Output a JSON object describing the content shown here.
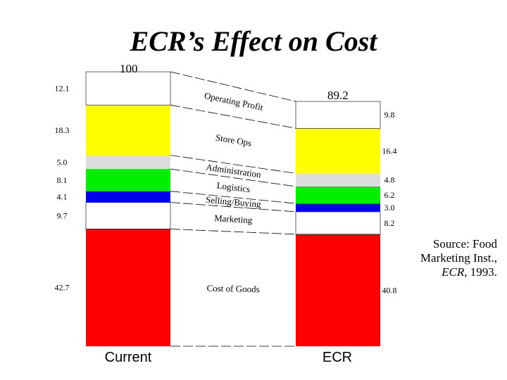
{
  "chart_data": {
    "type": "bar",
    "title": "ECR’s Effect on Cost",
    "categories": [
      "Current",
      "ECR"
    ],
    "totals": [
      "100",
      "89.2"
    ],
    "series": [
      {
        "name": "Cost of Goods",
        "color": "#ff0000",
        "values": [
          42.7,
          40.8
        ],
        "labels": [
          "42.7",
          "40.8"
        ]
      },
      {
        "name": "Marketing",
        "color": "#ffffff",
        "values": [
          9.7,
          8.2
        ],
        "labels": [
          "9.7",
          "8.2"
        ]
      },
      {
        "name": "Selling/Buying",
        "color": "#0000ee",
        "values": [
          4.1,
          3.0
        ],
        "labels": [
          "4.1",
          "3.0"
        ]
      },
      {
        "name": "Logistics",
        "color": "#00ee00",
        "values": [
          8.1,
          6.2
        ],
        "labels": [
          "8.1",
          "6.2"
        ]
      },
      {
        "name": "Administration",
        "color": "#dddddd",
        "values": [
          5.0,
          4.8
        ],
        "labels": [
          "5.0",
          "4.8"
        ]
      },
      {
        "name": "Store Ops",
        "color": "#ffff00",
        "values": [
          18.3,
          16.4
        ],
        "labels": [
          "18.3",
          "16.4"
        ]
      },
      {
        "name": "Operating Profit",
        "color": "#ffffff",
        "values": [
          12.1,
          9.8
        ],
        "labels": [
          "12.1",
          "9.8"
        ]
      }
    ]
  },
  "source": {
    "line1": "Source: Food",
    "line2": "Marketing Inst.,",
    "line3_italic": "ECR",
    "line3_rest": ", 1993."
  }
}
